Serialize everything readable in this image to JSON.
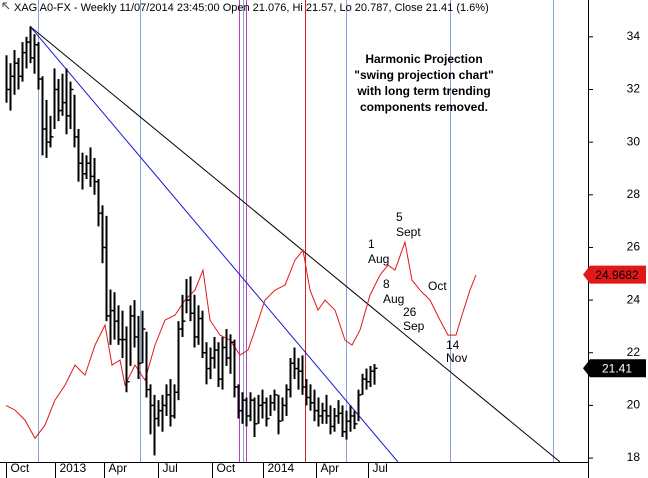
{
  "chart_data": {
    "type": "ohlc",
    "title": "XAG A0-FX - Weekly 11/07/2014 23:45:00 Open 21.076, Hi 21.57, Lo 20.787, Close 21.41 (1.6%)",
    "xlim": [
      -1.5,
      145.5
    ],
    "ylim": [
      17.85,
      35.4
    ],
    "yticks": [
      18,
      20,
      22,
      24,
      26,
      28,
      30,
      32,
      34
    ],
    "xticks": [
      {
        "value": 0,
        "label": "Oct"
      },
      {
        "value": 12.25,
        "label": "2013"
      },
      {
        "value": 24.5,
        "label": "Apr"
      },
      {
        "value": 38,
        "label": "Jul"
      },
      {
        "value": 51.5,
        "label": "Oct"
      },
      {
        "value": 64.25,
        "label": "2014"
      },
      {
        "value": 77.5,
        "label": "Apr"
      },
      {
        "value": 90.5,
        "label": "Jul"
      }
    ],
    "price": {
      "color": "#000000",
      "x": [
        0,
        1,
        2,
        3,
        4,
        5,
        6,
        7,
        8,
        9,
        10,
        11,
        12,
        13,
        14,
        15,
        16,
        17,
        18,
        19,
        20,
        21,
        22,
        23,
        24,
        25,
        26,
        27,
        28,
        29,
        30,
        31,
        32,
        33,
        34,
        35,
        36,
        37,
        38,
        39,
        40,
        41,
        42,
        43,
        44,
        45,
        46,
        47,
        48,
        49,
        50,
        51,
        52,
        53,
        54,
        55,
        56,
        57,
        58,
        59,
        60,
        61,
        62,
        63,
        64,
        65,
        66,
        67,
        68,
        69,
        70,
        71,
        72,
        73,
        74,
        75,
        76,
        77,
        78,
        79,
        80,
        81,
        82,
        83,
        84,
        85,
        86,
        87,
        88,
        89,
        90,
        91,
        92
      ],
      "high": [
        33.3,
        33,
        33.5,
        33.2,
        33.8,
        34,
        34.4,
        34.1,
        33.8,
        32.5,
        31.6,
        31,
        32.8,
        32.4,
        32.6,
        32.8,
        32.3,
        31.8,
        30.5,
        29.6,
        29.5,
        29.8,
        29.4,
        28.6,
        27.6,
        27.2,
        24.4,
        24.3,
        23.8,
        23.6,
        23,
        23.8,
        24,
        23.4,
        23.6,
        22.8,
        20.8,
        20.4,
        20.2,
        20.4,
        20.8,
        21,
        20.8,
        23.2,
        24.2,
        24.8,
        24.9,
        24.2,
        23.8,
        23.6,
        22.4,
        22.2,
        22.6,
        22.4,
        22.6,
        22.9,
        22.7,
        22.5,
        20.8,
        20.5,
        20.3,
        20.5,
        20.3,
        20.4,
        20.6,
        20.3,
        20.4,
        20.6,
        20.4,
        20.3,
        20.8,
        21.8,
        22.2,
        21.8,
        21.9,
        21,
        20.8,
        20.6,
        20.3,
        20.1,
        20.4,
        20,
        19.9,
        20.2,
        20,
        19.8,
        20,
        19.8,
        20.6,
        21.2,
        21.4,
        21.5,
        21.57
      ],
      "low": [
        31.5,
        31.2,
        31.8,
        32,
        32.3,
        32.8,
        33,
        32.6,
        32,
        29.5,
        29.4,
        29.8,
        30.5,
        30.8,
        31,
        30.3,
        30.5,
        29.8,
        28.5,
        28.2,
        28.6,
        28.3,
        28,
        26.8,
        25.4,
        23.2,
        22.3,
        22.5,
        22.3,
        21.8,
        20.5,
        21.5,
        22.2,
        21,
        21.6,
        20.3,
        18.9,
        18.1,
        19.2,
        19,
        19.6,
        19.2,
        19.5,
        20.2,
        22.6,
        23.5,
        23.2,
        22.2,
        22.3,
        21.8,
        20.8,
        21,
        21.4,
        20.7,
        20.6,
        21.5,
        21.2,
        20.3,
        19.5,
        19.3,
        19.2,
        19.4,
        18.8,
        19.3,
        19.5,
        19.2,
        19.6,
        19.8,
        18.9,
        19.4,
        19.6,
        20.3,
        21,
        20.6,
        20.4,
        20,
        19.8,
        19.4,
        19.2,
        19.3,
        19.3,
        18.9,
        19,
        19.3,
        18.8,
        18.7,
        19,
        19.1,
        19.4,
        20.4,
        20.6,
        20.7,
        20.787
      ],
      "close": [
        32,
        32.5,
        33,
        32.5,
        33.4,
        33.8,
        33.2,
        33.7,
        32.4,
        30.5,
        30,
        30.2,
        32,
        31.2,
        31.5,
        31,
        32,
        30.2,
        29.2,
        28.8,
        29.2,
        28.7,
        28.5,
        27.3,
        26,
        23.4,
        23.6,
        23.2,
        22.5,
        22.5,
        20.9,
        23.4,
        22.6,
        21.6,
        22.9,
        20.6,
        20,
        19.5,
        19.8,
        20,
        20.4,
        19.6,
        20.5,
        22.9,
        23.2,
        24,
        23.5,
        22.6,
        23.3,
        22,
        21.4,
        21.8,
        22.1,
        21,
        22.2,
        21.8,
        22.4,
        20.7,
        19.8,
        20.2,
        19.6,
        20.2,
        19.3,
        20,
        20.1,
        19.5,
        20.1,
        20.4,
        19.4,
        20,
        20.6,
        21.6,
        21.4,
        21.3,
        20.7,
        20.3,
        20.1,
        19.8,
        19.6,
        19.8,
        19.6,
        19.2,
        19.6,
        19.7,
        19,
        19.4,
        19.6,
        19.3,
        20.4,
        21,
        20.9,
        21.3,
        21.41
      ]
    },
    "projection": {
      "color": "#e01818",
      "x": [
        0,
        2.25,
        4.75,
        7.25,
        9.75,
        12.25,
        14.75,
        17.25,
        19.75,
        22.25,
        24.75,
        26.5,
        28.5,
        29.75,
        32.25,
        34.75,
        37.25,
        39.75,
        42.25,
        44.75,
        47.25,
        49.25,
        51,
        53.5,
        56,
        58.5,
        60.5,
        62.25,
        64.75,
        67.25,
        69.75,
        72.25,
        74.25,
        76,
        78,
        79.75,
        82.25,
        84.75,
        86.5,
        88.5,
        91,
        93.5,
        95.5,
        97.25,
        99.75,
        101.5,
        103.5,
        106,
        108.5,
        110.5,
        112.5,
        114,
        116,
        117.5
      ],
      "values": [
        20,
        19.82,
        19.44,
        18.75,
        19.25,
        20.2,
        20.77,
        21.53,
        21.15,
        22.29,
        23.05,
        21.53,
        21.72,
        20.77,
        21.53,
        20.96,
        22.29,
        23.24,
        23.43,
        24,
        24.38,
        25.14,
        23.24,
        22.67,
        22.48,
        21.91,
        22.1,
        22.86,
        24,
        24.38,
        24.57,
        25.52,
        25.9,
        24.38,
        23.62,
        24,
        23.62,
        22.48,
        22.29,
        22.86,
        24.19,
        24.95,
        25.33,
        25.14,
        26.2,
        24.76,
        24.38,
        24,
        23.24,
        22.67,
        22.67,
        23.43,
        24.38,
        24.95
      ]
    },
    "trend_lines": [
      {
        "color": "#000000",
        "x": [
          6,
          138.5
        ],
        "y": [
          34.4,
          17.85
        ]
      },
      {
        "color": "#1a1ad0",
        "x": [
          6,
          98
        ],
        "y": [
          34.4,
          17.85
        ]
      }
    ],
    "cycle_lines": [
      {
        "x": 8,
        "color": "#8aa2dc"
      },
      {
        "x": 33.5,
        "color": "#8aa2dc"
      },
      {
        "x": 58.25,
        "color": "#c040c0"
      },
      {
        "x": 59.25,
        "color": "#8aa2dc"
      },
      {
        "x": 60,
        "color": "#c040c0"
      },
      {
        "x": 74.75,
        "color": "#d02020"
      },
      {
        "x": 85,
        "color": "#8aa2dc"
      },
      {
        "x": 111,
        "color": "#8aa2dc"
      },
      {
        "x": 136.75,
        "color": "#8aa2dc"
      }
    ],
    "last_values": [
      {
        "value": 24.9682,
        "color": "#e01818"
      },
      {
        "value": 21.41,
        "color": "#000000"
      }
    ],
    "note": [
      "Harmonic Projection",
      "\"swing projection chart\"",
      "with long term trending",
      "components removed."
    ],
    "annotations": [
      "5",
      "Sept",
      "1",
      "Aug",
      "8",
      "Aug",
      "26",
      "Sep",
      "Oct",
      "14",
      "Nov"
    ]
  }
}
